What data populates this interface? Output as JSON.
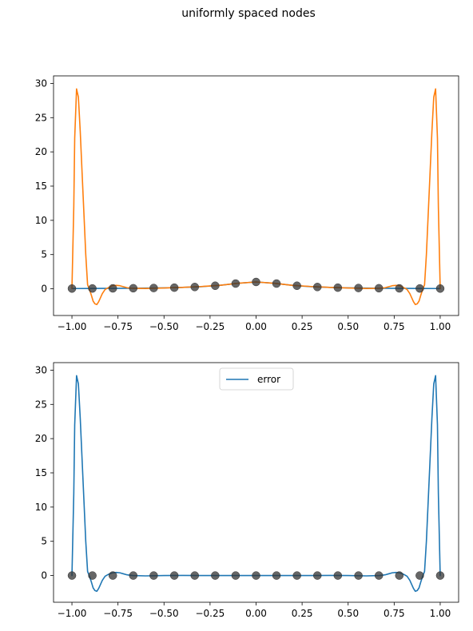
{
  "figure": {
    "title": "uniformly spaced nodes"
  },
  "colors": {
    "blue": "#1f77b4",
    "orange": "#ff7f0e",
    "node_fill": "#333333"
  },
  "chart_data": [
    {
      "type": "line",
      "panel": "top",
      "xlim": [
        -1.1,
        1.1
      ],
      "ylim": [
        -3.9,
        31.1
      ],
      "xticks": [
        -1.0,
        -0.75,
        -0.5,
        -0.25,
        0.0,
        0.25,
        0.5,
        0.75,
        1.0
      ],
      "xtick_labels": [
        "−1.00",
        "−0.75",
        "−0.50",
        "−0.25",
        "0.00",
        "0.25",
        "0.50",
        "0.75",
        "1.00"
      ],
      "yticks": [
        0,
        5,
        10,
        15,
        20,
        25,
        30
      ],
      "ytick_labels": [
        "0",
        "5",
        "10",
        "15",
        "20",
        "25",
        "30"
      ],
      "grid": false,
      "series": [
        {
          "kind": "line",
          "color": "#1f77b4",
          "x": [
            -1.0,
            -0.9,
            -0.8,
            -0.7,
            -0.6,
            -0.5,
            -0.4,
            -0.3,
            -0.2,
            -0.1,
            0.0,
            0.1,
            0.2,
            0.3,
            0.4,
            0.5,
            0.6,
            0.7,
            0.8,
            0.9,
            1.0
          ],
          "y": [
            0.038,
            0.047,
            0.059,
            0.075,
            0.1,
            0.138,
            0.2,
            0.308,
            0.5,
            0.8,
            1.0,
            0.8,
            0.5,
            0.308,
            0.2,
            0.138,
            0.1,
            0.075,
            0.059,
            0.047,
            0.038
          ]
        },
        {
          "kind": "line",
          "color": "#ff7f0e",
          "x": [
            -1.0,
            -0.99,
            -0.985,
            -0.975,
            -0.965,
            -0.955,
            -0.945,
            -0.935,
            -0.925,
            -0.915,
            -0.905,
            -0.895,
            -0.885,
            -0.875,
            -0.865,
            -0.855,
            -0.845,
            -0.835,
            -0.82,
            -0.8,
            -0.78,
            -0.76,
            -0.74,
            -0.72,
            -0.7,
            -0.67,
            -0.6,
            -0.5,
            -0.44,
            -0.4,
            -0.33,
            -0.3,
            -0.2,
            -0.1,
            0.0,
            0.1,
            0.2,
            0.3,
            0.33,
            0.4,
            0.44,
            0.5,
            0.6,
            0.67,
            0.7,
            0.72,
            0.74,
            0.76,
            0.78,
            0.8,
            0.82,
            0.835,
            0.845,
            0.855,
            0.865,
            0.875,
            0.885,
            0.895,
            0.905,
            0.915,
            0.925,
            0.935,
            0.945,
            0.955,
            0.965,
            0.975,
            0.985,
            0.99,
            1.0
          ],
          "y": [
            0.038,
            12.0,
            22.0,
            29.2,
            28.0,
            23.0,
            17.0,
            11.0,
            5.0,
            0.6,
            -0.1,
            -0.9,
            -1.8,
            -2.2,
            -2.3,
            -1.9,
            -1.3,
            -0.7,
            -0.1,
            0.2,
            0.45,
            0.5,
            0.45,
            0.3,
            0.15,
            0.08,
            0.05,
            0.12,
            0.18,
            0.2,
            0.3,
            0.33,
            0.5,
            0.8,
            1.0,
            0.8,
            0.5,
            0.33,
            0.3,
            0.2,
            0.18,
            0.12,
            0.05,
            0.08,
            0.15,
            0.3,
            0.45,
            0.5,
            0.45,
            0.2,
            -0.1,
            -0.7,
            -1.3,
            -1.9,
            -2.3,
            -2.2,
            -1.8,
            -0.9,
            -0.1,
            0.6,
            5.0,
            11.0,
            17.0,
            23.0,
            28.0,
            29.2,
            22.0,
            12.0,
            0.038
          ]
        },
        {
          "kind": "scatter",
          "color": "#333333",
          "x": [
            -1.0,
            -0.889,
            -0.778,
            -0.667,
            -0.556,
            -0.444,
            -0.333,
            -0.222,
            -0.111,
            0.0,
            0.111,
            0.222,
            0.333,
            0.444,
            0.556,
            0.667,
            0.778,
            0.889,
            1.0
          ],
          "y": [
            0.038,
            0.048,
            0.062,
            0.083,
            0.115,
            0.168,
            0.265,
            0.448,
            0.764,
            1.0,
            0.764,
            0.448,
            0.265,
            0.168,
            0.115,
            0.083,
            0.062,
            0.048,
            0.038
          ]
        }
      ]
    },
    {
      "type": "line",
      "panel": "bottom",
      "xlim": [
        -1.1,
        1.1
      ],
      "ylim": [
        -3.9,
        31.1
      ],
      "xticks": [
        -1.0,
        -0.75,
        -0.5,
        -0.25,
        0.0,
        0.25,
        0.5,
        0.75,
        1.0
      ],
      "xtick_labels": [
        "−1.00",
        "−0.75",
        "−0.50",
        "−0.25",
        "0.00",
        "0.25",
        "0.50",
        "0.75",
        "1.00"
      ],
      "yticks": [
        0,
        5,
        10,
        15,
        20,
        25,
        30
      ],
      "ytick_labels": [
        "0",
        "5",
        "10",
        "15",
        "20",
        "25",
        "30"
      ],
      "grid": false,
      "legend": {
        "placement": "upper-center",
        "entries": [
          "error"
        ]
      },
      "series": [
        {
          "kind": "line",
          "name": "error",
          "color": "#1f77b4",
          "x": [
            -1.0,
            -0.99,
            -0.985,
            -0.975,
            -0.965,
            -0.955,
            -0.945,
            -0.935,
            -0.925,
            -0.915,
            -0.905,
            -0.895,
            -0.885,
            -0.875,
            -0.865,
            -0.855,
            -0.845,
            -0.835,
            -0.82,
            -0.8,
            -0.78,
            -0.76,
            -0.74,
            -0.72,
            -0.7,
            -0.67,
            -0.6,
            -0.5,
            -0.4,
            -0.3,
            -0.2,
            -0.1,
            0.0,
            0.1,
            0.2,
            0.3,
            0.4,
            0.5,
            0.6,
            0.67,
            0.7,
            0.72,
            0.74,
            0.76,
            0.78,
            0.8,
            0.82,
            0.835,
            0.845,
            0.855,
            0.865,
            0.875,
            0.885,
            0.895,
            0.905,
            0.915,
            0.925,
            0.935,
            0.945,
            0.955,
            0.965,
            0.975,
            0.985,
            0.99,
            1.0
          ],
          "y": [
            0.0,
            12.0,
            22.0,
            29.2,
            28.0,
            23.0,
            17.0,
            11.0,
            5.0,
            0.6,
            -0.1,
            -0.9,
            -1.8,
            -2.2,
            -2.3,
            -1.9,
            -1.3,
            -0.7,
            -0.1,
            0.2,
            0.4,
            0.45,
            0.4,
            0.25,
            0.1,
            0.0,
            -0.05,
            0.0,
            0.02,
            0.0,
            0.0,
            0.0,
            0.0,
            0.0,
            0.0,
            0.0,
            0.02,
            0.0,
            -0.05,
            0.0,
            0.1,
            0.25,
            0.4,
            0.45,
            0.4,
            0.2,
            -0.1,
            -0.7,
            -1.3,
            -1.9,
            -2.3,
            -2.2,
            -1.8,
            -0.9,
            -0.1,
            0.6,
            5.0,
            11.0,
            17.0,
            23.0,
            28.0,
            29.2,
            22.0,
            12.0,
            0.0
          ]
        },
        {
          "kind": "scatter",
          "color": "#333333",
          "x": [
            -1.0,
            -0.889,
            -0.778,
            -0.667,
            -0.556,
            -0.444,
            -0.333,
            -0.222,
            -0.111,
            0.0,
            0.111,
            0.222,
            0.333,
            0.444,
            0.556,
            0.667,
            0.778,
            0.889,
            1.0
          ],
          "y": [
            0,
            0,
            0,
            0,
            0,
            0,
            0,
            0,
            0,
            0,
            0,
            0,
            0,
            0,
            0,
            0,
            0,
            0,
            0
          ]
        }
      ]
    }
  ]
}
